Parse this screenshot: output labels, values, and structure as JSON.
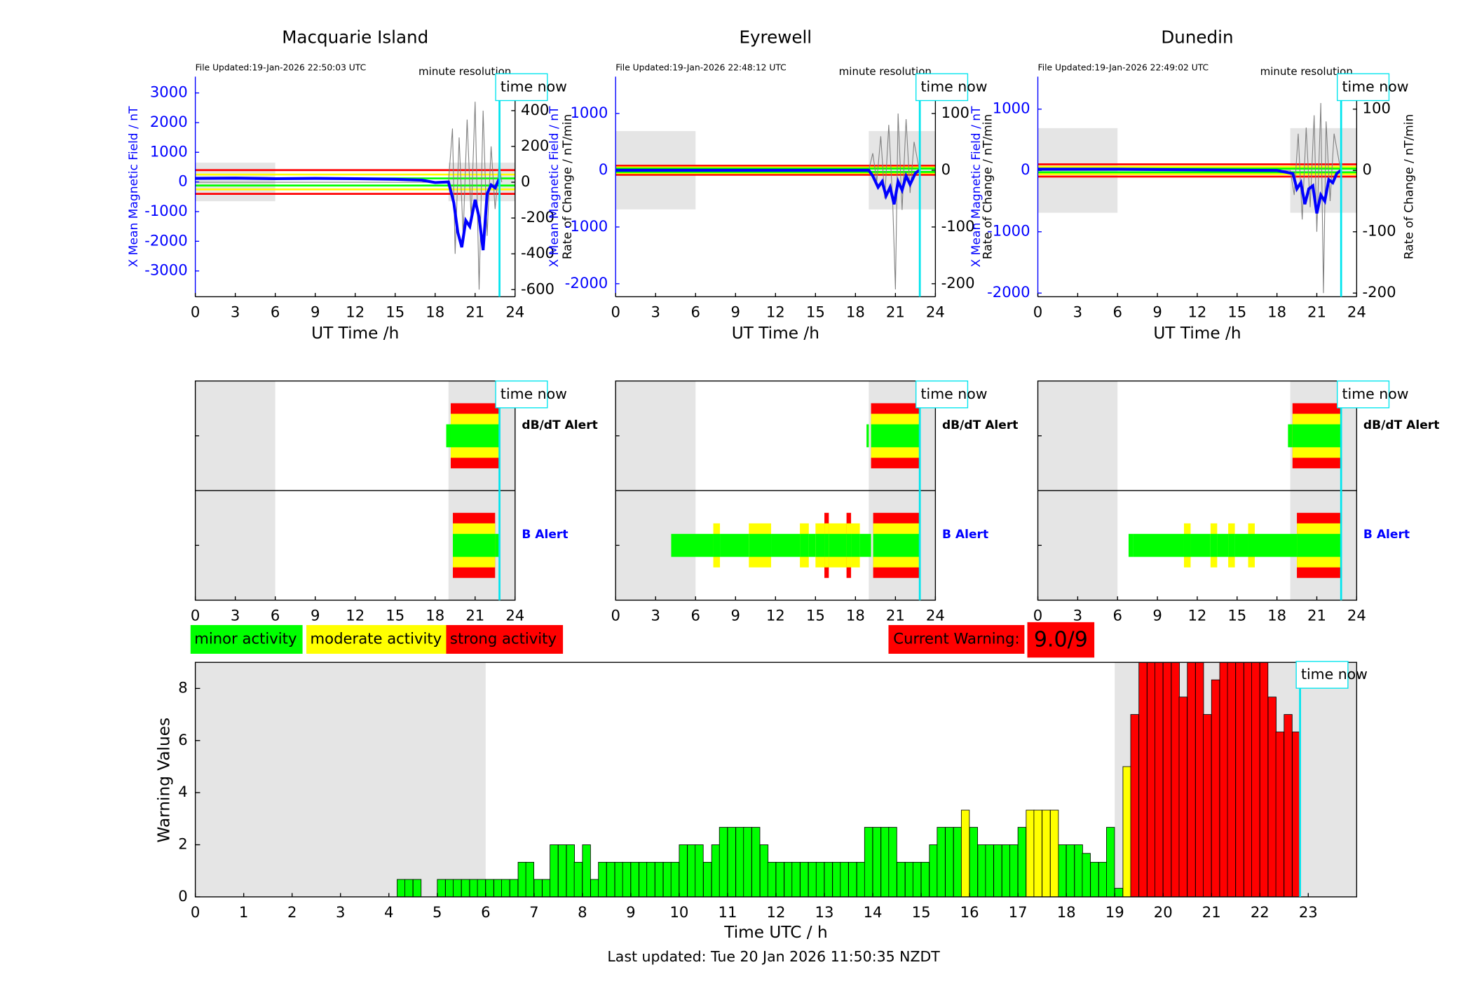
{
  "chart_data": [
    {
      "type": "line",
      "title": "Macquarie Island",
      "file_updated": "File Updated:19-Jan-2026 22:50:03 UTC",
      "annotation": "minute resolution",
      "time_now_label": "time now",
      "time_now": 22.83,
      "xlabel": "UT Time /h",
      "ylabel": "X Mean Magnetic Field / nT",
      "y2label": "Rate of Change / nT/min",
      "xlim": [
        0,
        24
      ],
      "xticks": [
        0,
        3,
        6,
        9,
        12,
        15,
        18,
        21,
        24
      ],
      "ylim": [
        -3870,
        3550
      ],
      "yticks": [
        -3000,
        -2000,
        -1000,
        0,
        1000,
        2000,
        3000
      ],
      "y2lim": [
        -640,
        590
      ],
      "y2ticks": [
        -600,
        -400,
        -200,
        0,
        200,
        400
      ],
      "shade": {
        "x": [
          [
            0,
            6
          ],
          [
            19,
            24
          ]
        ],
        "y": [
          -650,
          650
        ]
      },
      "thresholds": [
        {
          "color": "#ff0000",
          "value": 400
        },
        {
          "color": "#ffff00",
          "value": 250
        },
        {
          "color": "#00ff00",
          "value": 120
        }
      ],
      "series": [
        {
          "color": "#808080",
          "axis": "y2",
          "x": [
            0,
            19,
            19.3,
            19.5,
            19.8,
            20.1,
            20.4,
            20.7,
            21,
            21.3,
            21.6,
            21.9,
            22.2,
            22.5,
            22.8,
            23
          ],
          "values": [
            0,
            0,
            300,
            -400,
            250,
            -300,
            350,
            -200,
            450,
            -600,
            400,
            -300,
            200,
            -150,
            100,
            0
          ]
        },
        {
          "color": "#0000ff",
          "axis": "y",
          "x": [
            0,
            3,
            6,
            9,
            12,
            15,
            17,
            18,
            19,
            19.4,
            19.7,
            20,
            20.3,
            20.6,
            21,
            21.3,
            21.6,
            21.9,
            22.2,
            22.5,
            22.8
          ],
          "values": [
            120,
            130,
            110,
            120,
            110,
            90,
            60,
            -20,
            0,
            -700,
            -1700,
            -2200,
            -1300,
            -1500,
            -600,
            -1200,
            -2300,
            -400,
            -100,
            -200,
            100
          ]
        }
      ]
    },
    {
      "type": "line",
      "title": "Eyrewell",
      "file_updated": "File Updated:19-Jan-2026 22:48:12 UTC",
      "annotation": "minute resolution",
      "time_now_label": "time now",
      "time_now": 22.83,
      "xlabel": "UT Time /h",
      "ylabel": "X Mean Magnetic Field / nT",
      "y2label": "Rate of Change / nT/min",
      "xlim": [
        0,
        24
      ],
      "xticks": [
        0,
        3,
        6,
        9,
        12,
        15,
        18,
        21,
        24
      ],
      "ylim": [
        -2230,
        1650
      ],
      "yticks": [
        -2000,
        -1000,
        0,
        1000
      ],
      "y2lim": [
        -223,
        165
      ],
      "y2ticks": [
        -200,
        -100,
        0,
        100
      ],
      "shade": {
        "x": [
          [
            0,
            6
          ],
          [
            19,
            24
          ]
        ],
        "y": [
          -690,
          690
        ]
      },
      "thresholds": [
        {
          "color": "#ff0000",
          "value": 80
        },
        {
          "color": "#ffff00",
          "value": 50
        },
        {
          "color": "#00ff00",
          "value": 30
        }
      ],
      "series": [
        {
          "color": "#808080",
          "axis": "y2",
          "x": [
            0,
            19,
            19.3,
            19.6,
            19.9,
            20.2,
            20.5,
            20.8,
            21,
            21.2,
            21.5,
            21.8,
            22.1,
            22.4,
            22.8
          ],
          "values": [
            0,
            0,
            30,
            -20,
            60,
            -50,
            80,
            -60,
            -210,
            100,
            -70,
            90,
            -40,
            50,
            0
          ]
        },
        {
          "color": "#0000ff",
          "axis": "y",
          "x": [
            0,
            19,
            19.3,
            19.7,
            20,
            20.3,
            20.6,
            20.9,
            21.2,
            21.5,
            21.8,
            22.1,
            22.5,
            22.8
          ],
          "values": [
            0,
            0,
            -100,
            -300,
            -200,
            -450,
            -300,
            -600,
            -200,
            -350,
            -100,
            -250,
            -50,
            0
          ]
        }
      ]
    },
    {
      "type": "line",
      "title": "Dunedin",
      "file_updated": "File Updated:19-Jan-2026 22:49:02 UTC",
      "annotation": "minute resolution",
      "time_now_label": "time now",
      "time_now": 22.83,
      "xlabel": "UT Time /h",
      "ylabel": "X Mean Magnetic Field / nT",
      "y2label": "Rate of Change / nT/min",
      "xlim": [
        0,
        24
      ],
      "xticks": [
        0,
        3,
        6,
        9,
        12,
        15,
        18,
        21,
        24
      ],
      "ylim": [
        -2060,
        1530
      ],
      "yticks": [
        -2000,
        -1000,
        0,
        1000
      ],
      "y2lim": [
        -206,
        153
      ],
      "y2ticks": [
        -200,
        -100,
        0,
        100
      ],
      "shade": {
        "x": [
          [
            0,
            6
          ],
          [
            19,
            24
          ]
        ],
        "y": [
          -690,
          690
        ]
      },
      "thresholds": [
        {
          "color": "#ff0000",
          "value": 100
        },
        {
          "color": "#ffff00",
          "value": 60
        },
        {
          "color": "#00ff00",
          "value": 30
        }
      ],
      "series": [
        {
          "color": "#808080",
          "axis": "y2",
          "x": [
            0,
            19,
            19.3,
            19.6,
            19.9,
            20.2,
            20.5,
            20.8,
            21,
            21.3,
            21.5,
            21.7,
            22,
            22.3,
            22.8
          ],
          "values": [
            0,
            0,
            -40,
            60,
            -80,
            70,
            -60,
            90,
            -100,
            110,
            -200,
            80,
            -50,
            60,
            0
          ]
        },
        {
          "color": "#0000ff",
          "axis": "y",
          "x": [
            0,
            6,
            12,
            18,
            19.2,
            19.5,
            19.8,
            20.1,
            20.4,
            20.7,
            21,
            21.3,
            21.6,
            21.9,
            22.2,
            22.5,
            22.8
          ],
          "values": [
            20,
            20,
            10,
            0,
            -50,
            -300,
            -200,
            -550,
            -300,
            -250,
            -700,
            -400,
            -500,
            -150,
            -200,
            -50,
            0
          ]
        }
      ]
    },
    {
      "type": "alert",
      "time_now_label": "time now",
      "time_now": 22.83,
      "xlim": [
        0,
        24
      ],
      "xticks": [
        0,
        3,
        6,
        9,
        12,
        15,
        18,
        21,
        24
      ],
      "shade": [
        [
          0,
          6
        ],
        [
          19,
          24
        ]
      ],
      "rows": [
        {
          "name": "dB/dT Alert",
          "color": "#000000",
          "segments": [
            [
              18.83,
              19.17,
              1
            ],
            [
              19.17,
              22.83,
              3
            ]
          ]
        },
        {
          "name": "B Alert",
          "color": "#0000ff",
          "segments": [
            [
              19.33,
              22.5,
              3
            ],
            [
              22.5,
              22.83,
              1
            ]
          ]
        }
      ]
    },
    {
      "type": "alert",
      "time_now_label": "time now",
      "time_now": 22.83,
      "xlim": [
        0,
        24
      ],
      "xticks": [
        0,
        3,
        6,
        9,
        12,
        15,
        18,
        21,
        24
      ],
      "shade": [
        [
          0,
          6
        ],
        [
          19,
          24
        ]
      ],
      "rows": [
        {
          "name": "dB/dT Alert",
          "color": "#000000",
          "segments": [
            [
              18.83,
              19,
              1
            ],
            [
              19.17,
              22.83,
              3
            ]
          ]
        },
        {
          "name": "B Alert",
          "color": "#0000ff",
          "segments": [
            [
              4.17,
              7.33,
              1
            ],
            [
              7.33,
              7.83,
              2
            ],
            [
              7.83,
              10,
              1
            ],
            [
              10,
              11.67,
              2
            ],
            [
              11.67,
              13.83,
              1
            ],
            [
              13.83,
              14.5,
              2
            ],
            [
              14.5,
              15,
              1
            ],
            [
              15,
              15.67,
              2
            ],
            [
              15.67,
              16,
              3
            ],
            [
              16,
              17.33,
              2
            ],
            [
              17.33,
              17.67,
              3
            ],
            [
              17.67,
              18.33,
              2
            ],
            [
              18.33,
              19.17,
              1
            ],
            [
              19.33,
              22.83,
              3
            ]
          ]
        }
      ]
    },
    {
      "type": "alert",
      "time_now_label": "time now",
      "time_now": 22.83,
      "xlim": [
        0,
        24
      ],
      "xticks": [
        0,
        3,
        6,
        9,
        12,
        15,
        18,
        21,
        24
      ],
      "shade": [
        [
          0,
          6
        ],
        [
          19,
          24
        ]
      ],
      "rows": [
        {
          "name": "dB/dT Alert",
          "color": "#000000",
          "segments": [
            [
              18.83,
              19.17,
              1
            ],
            [
              19.17,
              22.83,
              3
            ]
          ]
        },
        {
          "name": "B Alert",
          "color": "#0000ff",
          "segments": [
            [
              6.83,
              7.17,
              1
            ],
            [
              7.17,
              11,
              1
            ],
            [
              11,
              11.5,
              2
            ],
            [
              11.5,
              13,
              1
            ],
            [
              13,
              13.5,
              2
            ],
            [
              13.5,
              14.33,
              1
            ],
            [
              14.33,
              14.83,
              2
            ],
            [
              14.83,
              15.83,
              1
            ],
            [
              15.83,
              16.33,
              2
            ],
            [
              16.33,
              19.5,
              1
            ],
            [
              19.5,
              22.83,
              3
            ]
          ]
        }
      ]
    },
    {
      "type": "bar",
      "ylabel": "Warning Values",
      "xlabel": "Time UTC / h",
      "footer": "Last updated: Tue 20 Jan 2026 11:50:35 NZDT",
      "current_warning_label": "Current Warning:",
      "current_warning": "9.0/9",
      "time_now_label": "time now",
      "time_now": 22.83,
      "xlim": [
        0,
        24
      ],
      "xticks": [
        0,
        1,
        2,
        3,
        4,
        5,
        6,
        7,
        8,
        9,
        10,
        11,
        12,
        13,
        14,
        15,
        16,
        17,
        18,
        19,
        20,
        21,
        22,
        23
      ],
      "ylim": [
        0,
        9
      ],
      "yticks": [
        0,
        2,
        4,
        6,
        8
      ],
      "shade": [
        [
          0,
          6
        ],
        [
          19,
          24
        ]
      ],
      "series": [
        {
          "name": "minor activity",
          "color": "#00ff00",
          "x": [
            4.17,
            4.33,
            4.5,
            5,
            5.17,
            5.33,
            5.5,
            5.67,
            5.83,
            6,
            6.17,
            6.33,
            6.5,
            6.67,
            6.83,
            7,
            7.17,
            7.33,
            7.5,
            7.67,
            7.83,
            8,
            8.17,
            8.33,
            8.5,
            8.67,
            8.83,
            9,
            9.17,
            9.33,
            9.5,
            9.67,
            9.83,
            10,
            10.17,
            10.33,
            10.5,
            10.67,
            10.83,
            11,
            11.17,
            11.33,
            11.5,
            11.67,
            11.83,
            12,
            12.17,
            12.33,
            12.5,
            12.67,
            12.83,
            13,
            13.17,
            13.33,
            13.5,
            13.67,
            13.83,
            14,
            14.17,
            14.33,
            14.5,
            14.67,
            14.83,
            15,
            15.17,
            15.33,
            15.5,
            15.67,
            16,
            16.17,
            16.33,
            16.5,
            16.67,
            16.83,
            17,
            17.83,
            18,
            18.17,
            18.33,
            18.5,
            18.67,
            18.83,
            19
          ],
          "values": [
            0.67,
            0.67,
            0.67,
            0.67,
            0.67,
            0.67,
            0.67,
            0.67,
            0.67,
            0.67,
            0.67,
            0.67,
            0.67,
            1.33,
            1.33,
            0.67,
            0.67,
            2,
            2,
            2,
            1.33,
            2,
            0.67,
            1.33,
            1.33,
            1.33,
            1.33,
            1.33,
            1.33,
            1.33,
            1.33,
            1.33,
            1.33,
            2,
            2,
            2,
            1.33,
            2,
            2.67,
            2.67,
            2.67,
            2.67,
            2.67,
            2,
            1.33,
            1.33,
            1.33,
            1.33,
            1.33,
            1.33,
            1.33,
            1.33,
            1.33,
            1.33,
            1.33,
            1.33,
            2.67,
            2.67,
            2.67,
            2.67,
            1.33,
            1.33,
            1.33,
            1.33,
            2,
            2.67,
            2.67,
            2.67,
            2.67,
            2,
            2,
            2,
            2,
            2,
            2.67,
            2,
            2,
            2,
            1.67,
            1.33,
            1.33,
            2.67,
            0.33
          ]
        },
        {
          "name": "moderate activity",
          "color": "#ffff00",
          "x": [
            15.83,
            17.17,
            17.33,
            17.5,
            17.67,
            19.17
          ],
          "values": [
            3.33,
            3.33,
            3.33,
            3.33,
            3.33,
            5
          ]
        },
        {
          "name": "strong activity",
          "color": "#ff0000",
          "x": [
            19.33,
            19.5,
            19.67,
            19.83,
            20,
            20.17,
            20.33,
            20.5,
            20.67,
            20.83,
            21,
            21.17,
            21.33,
            21.5,
            21.67,
            21.83,
            22,
            22.17,
            22.33,
            22.5,
            22.67
          ],
          "values": [
            7,
            9,
            9,
            9,
            9,
            9,
            7.67,
            9,
            9,
            7,
            8.33,
            9,
            9,
            9,
            9,
            9,
            9,
            7.67,
            6.33,
            7,
            6.33
          ]
        }
      ]
    }
  ]
}
